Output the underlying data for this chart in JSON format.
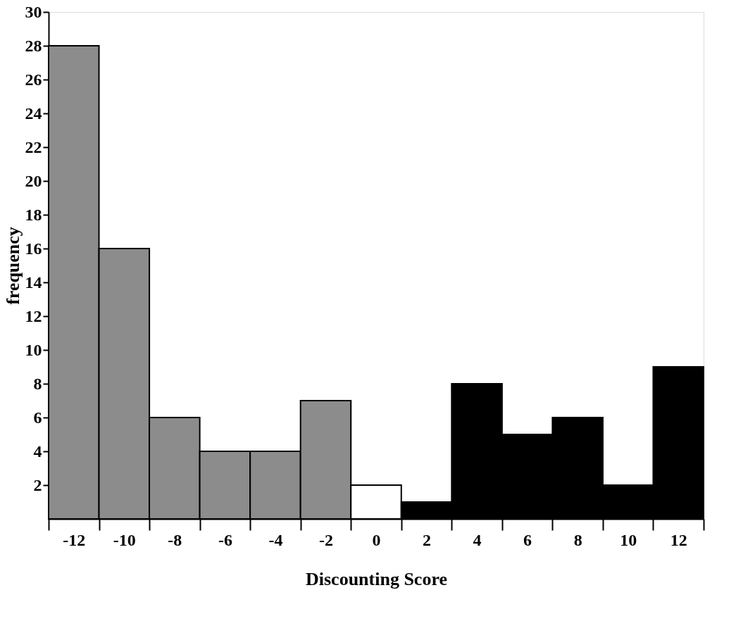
{
  "chart_data": {
    "type": "bar",
    "xlabel": "Discounting Score",
    "ylabel": "frequency",
    "categories": [
      "-12",
      "-10",
      "-8",
      "-6",
      "-4",
      "-2",
      "0",
      "2",
      "4",
      "6",
      "8",
      "10",
      "12"
    ],
    "values": [
      28,
      16,
      6,
      4,
      4,
      7,
      2,
      1,
      8,
      5,
      6,
      2,
      9
    ],
    "colors": [
      "#8c8c8c",
      "#8c8c8c",
      "#8c8c8c",
      "#8c8c8c",
      "#8c8c8c",
      "#8c8c8c",
      "#ffffff",
      "#000000",
      "#000000",
      "#000000",
      "#000000",
      "#000000",
      "#000000"
    ],
    "ylim": [
      0,
      30
    ],
    "yticks": [
      2,
      4,
      6,
      8,
      10,
      12,
      14,
      16,
      18,
      20,
      22,
      24,
      26,
      28,
      30
    ],
    "grid": false
  }
}
